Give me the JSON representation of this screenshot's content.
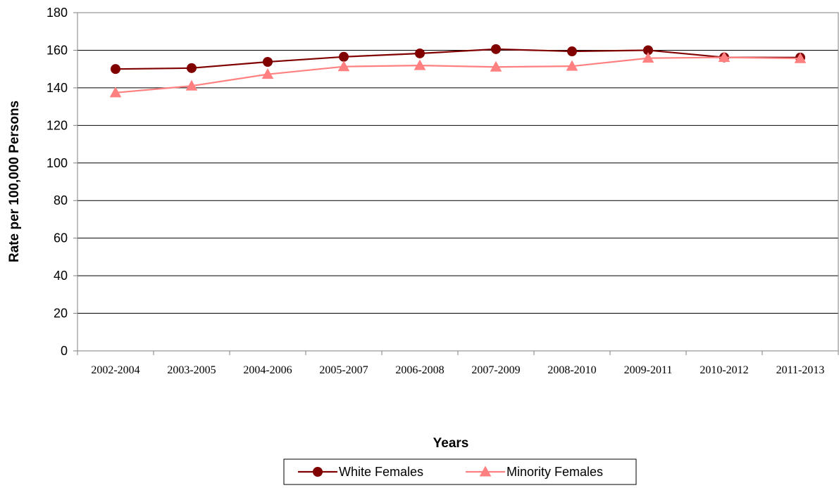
{
  "chart_data": {
    "type": "line",
    "categories": [
      "2002-2004",
      "2003-2005",
      "2004-2006",
      "2005-2007",
      "2006-2008",
      "2007-2009",
      "2008-2010",
      "2009-2011",
      "2010-2012",
      "2011-2013"
    ],
    "series": [
      {
        "name": "White Females",
        "values": [
          150.0,
          150.5,
          153.8,
          156.5,
          158.3,
          160.6,
          159.4,
          160.0,
          156.2,
          156.1
        ],
        "color": "#800000",
        "marker": "circle"
      },
      {
        "name": "Minority Females",
        "values": [
          137.4,
          141.0,
          147.2,
          151.3,
          151.9,
          151.1,
          151.5,
          155.8,
          156.2,
          155.6
        ],
        "color": "#ff8080",
        "marker": "triangle"
      }
    ],
    "xlabel": "Years",
    "ylabel": "Rate per 100,000 Persons",
    "ylim": [
      0,
      180
    ],
    "yticks": [
      0,
      20,
      40,
      60,
      80,
      100,
      120,
      140,
      160,
      180
    ],
    "grid": true,
    "legend": "bottom-center"
  }
}
